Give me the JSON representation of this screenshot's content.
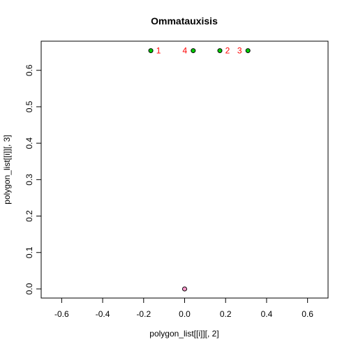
{
  "chart_data": {
    "type": "scatter",
    "title": "Ommatauxisis",
    "xlabel": "polygon_list[[i]][, 2]",
    "ylabel": "polygon_list[[i]][, 3]",
    "xlim": [
      -0.7,
      0.7
    ],
    "ylim": [
      -0.025,
      0.68
    ],
    "x_ticks": [
      -0.6,
      -0.4,
      -0.2,
      0.0,
      0.2,
      0.4,
      0.6
    ],
    "y_ticks": [
      0.0,
      0.1,
      0.2,
      0.3,
      0.4,
      0.5,
      0.6
    ],
    "x_tick_labels": [
      "-0.6",
      "-0.4",
      "-0.2",
      "0.0",
      "0.2",
      "0.4",
      "0.6"
    ],
    "y_tick_labels": [
      "0.0",
      "0.1",
      "0.2",
      "0.3",
      "0.4",
      "0.5",
      "0.6"
    ],
    "grid": false,
    "series": [
      {
        "color": "#00cc00",
        "points": [
          {
            "x": -0.165,
            "y": 0.654,
            "label": "1",
            "label_side": "right"
          },
          {
            "x": 0.172,
            "y": 0.654,
            "label": "2",
            "label_side": "right"
          },
          {
            "x": 0.309,
            "y": 0.654,
            "label": "3",
            "label_side": "left"
          },
          {
            "x": 0.042,
            "y": 0.654,
            "label": "4",
            "label_side": "left"
          }
        ]
      },
      {
        "color": "#ff99cc",
        "points": [
          {
            "x": 0.0,
            "y": 0.0
          }
        ]
      }
    ],
    "label_color": "#ff0000",
    "axis_color": "#000000"
  }
}
